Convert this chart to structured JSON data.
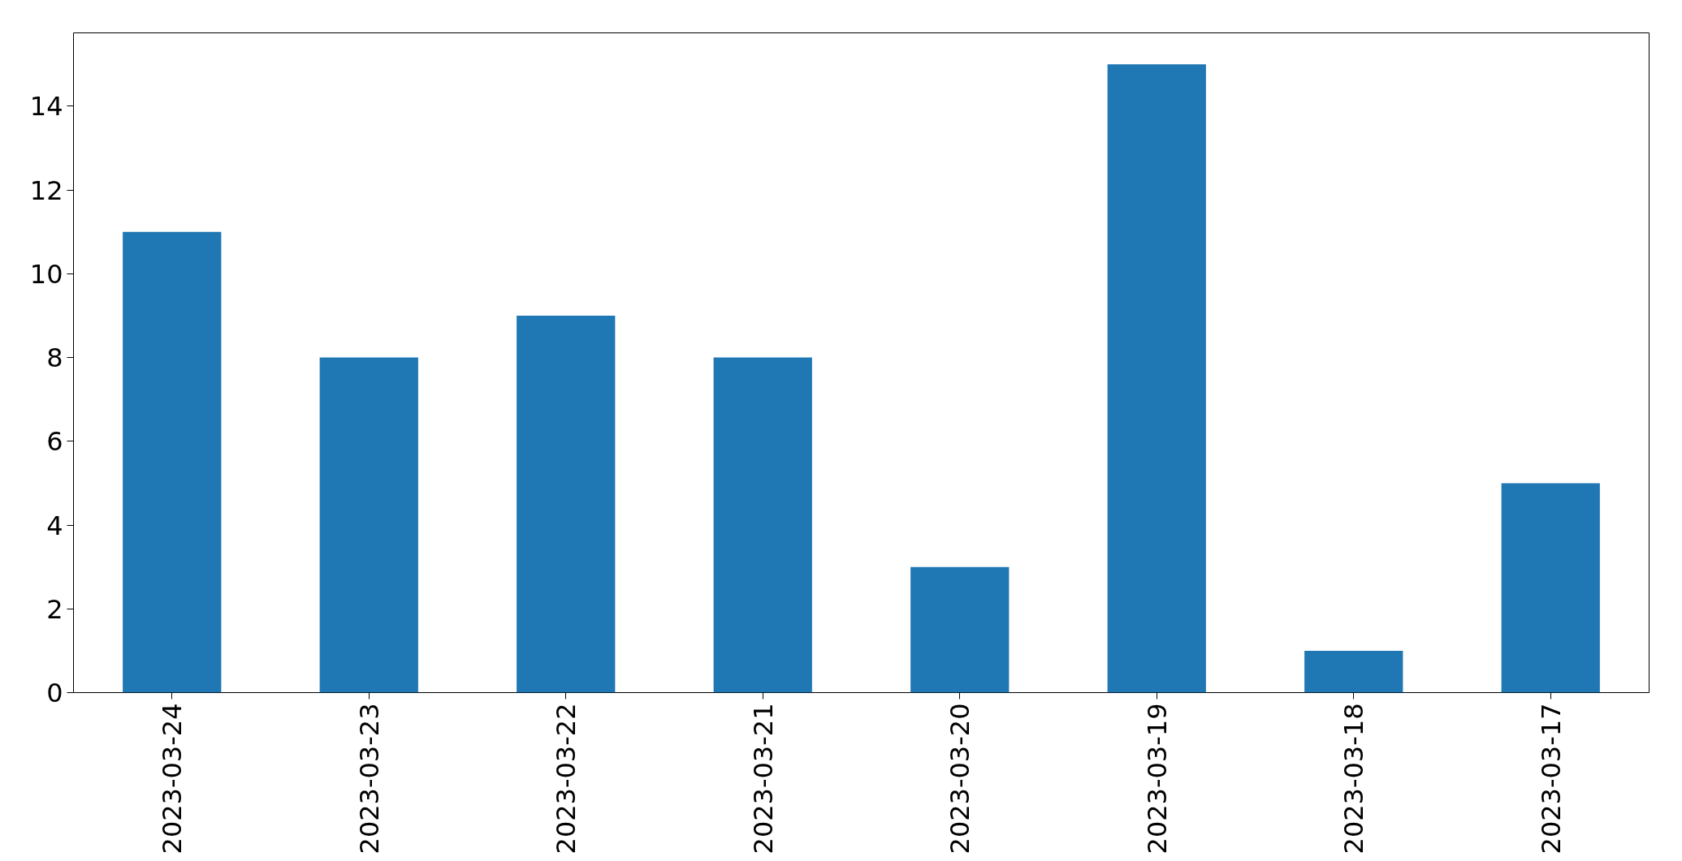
{
  "chart_data": {
    "type": "bar",
    "categories": [
      "2023-03-24",
      "2023-03-23",
      "2023-03-22",
      "2023-03-21",
      "2023-03-20",
      "2023-03-19",
      "2023-03-18",
      "2023-03-17"
    ],
    "values": [
      11,
      8,
      9,
      8,
      3,
      15,
      1,
      5
    ],
    "color": "#1f77b4",
    "ylim": [
      0,
      15.75
    ],
    "yticks": [
      0,
      2,
      4,
      6,
      8,
      10,
      12,
      14
    ],
    "grid": false
  }
}
